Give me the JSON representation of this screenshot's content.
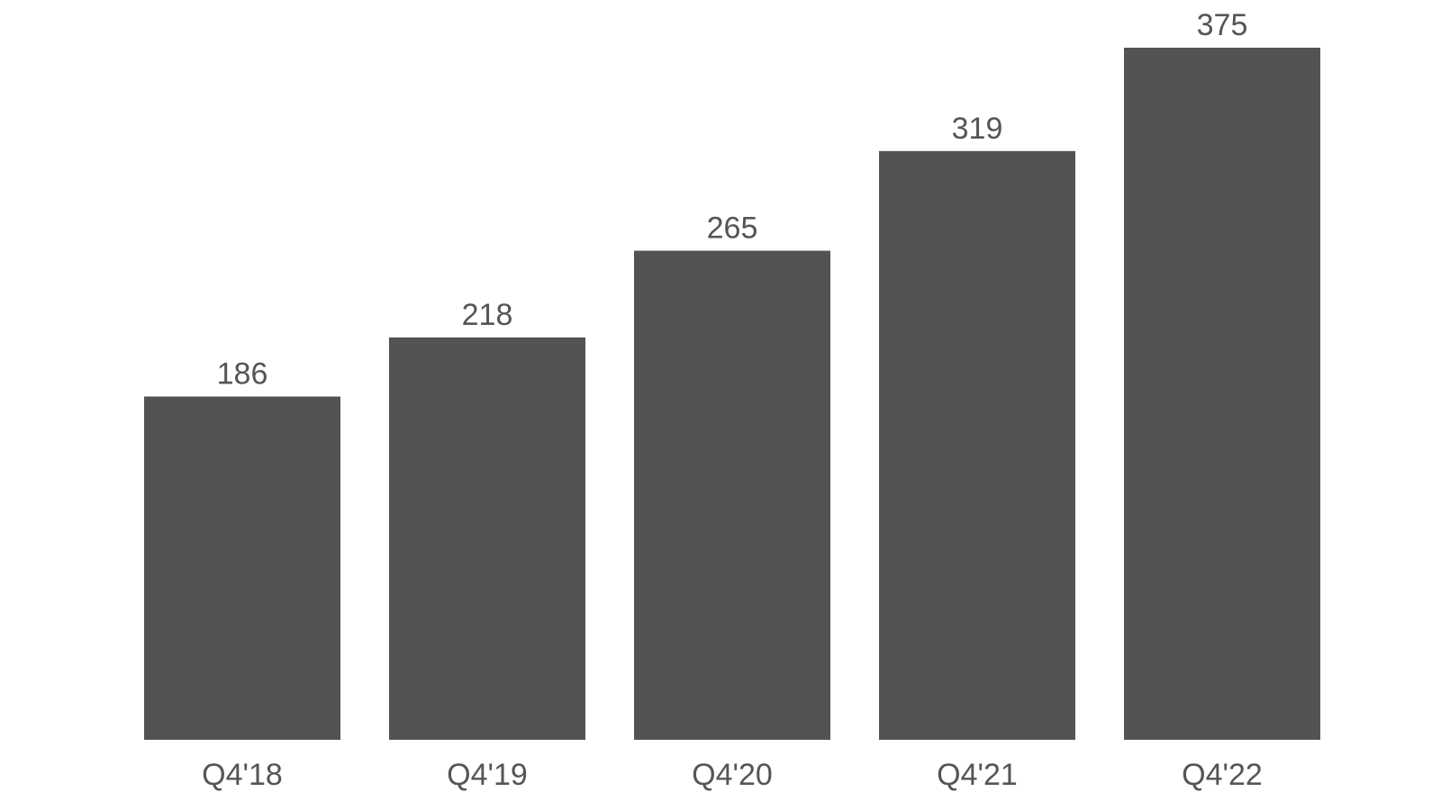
{
  "chart_data": {
    "type": "bar",
    "categories": [
      "Q4'18",
      "Q4'19",
      "Q4'20",
      "Q4'21",
      "Q4'22"
    ],
    "values": [
      186,
      218,
      265,
      319,
      375
    ],
    "data_labels": [
      "186",
      "218",
      "265",
      "319",
      "375"
    ],
    "title": "",
    "xlabel": "",
    "ylabel": "",
    "ylim": [
      0,
      375
    ],
    "grid": false,
    "legend": "none",
    "colors": {
      "bar": "#535353",
      "text": "#555555",
      "background": "#ffffff"
    }
  }
}
